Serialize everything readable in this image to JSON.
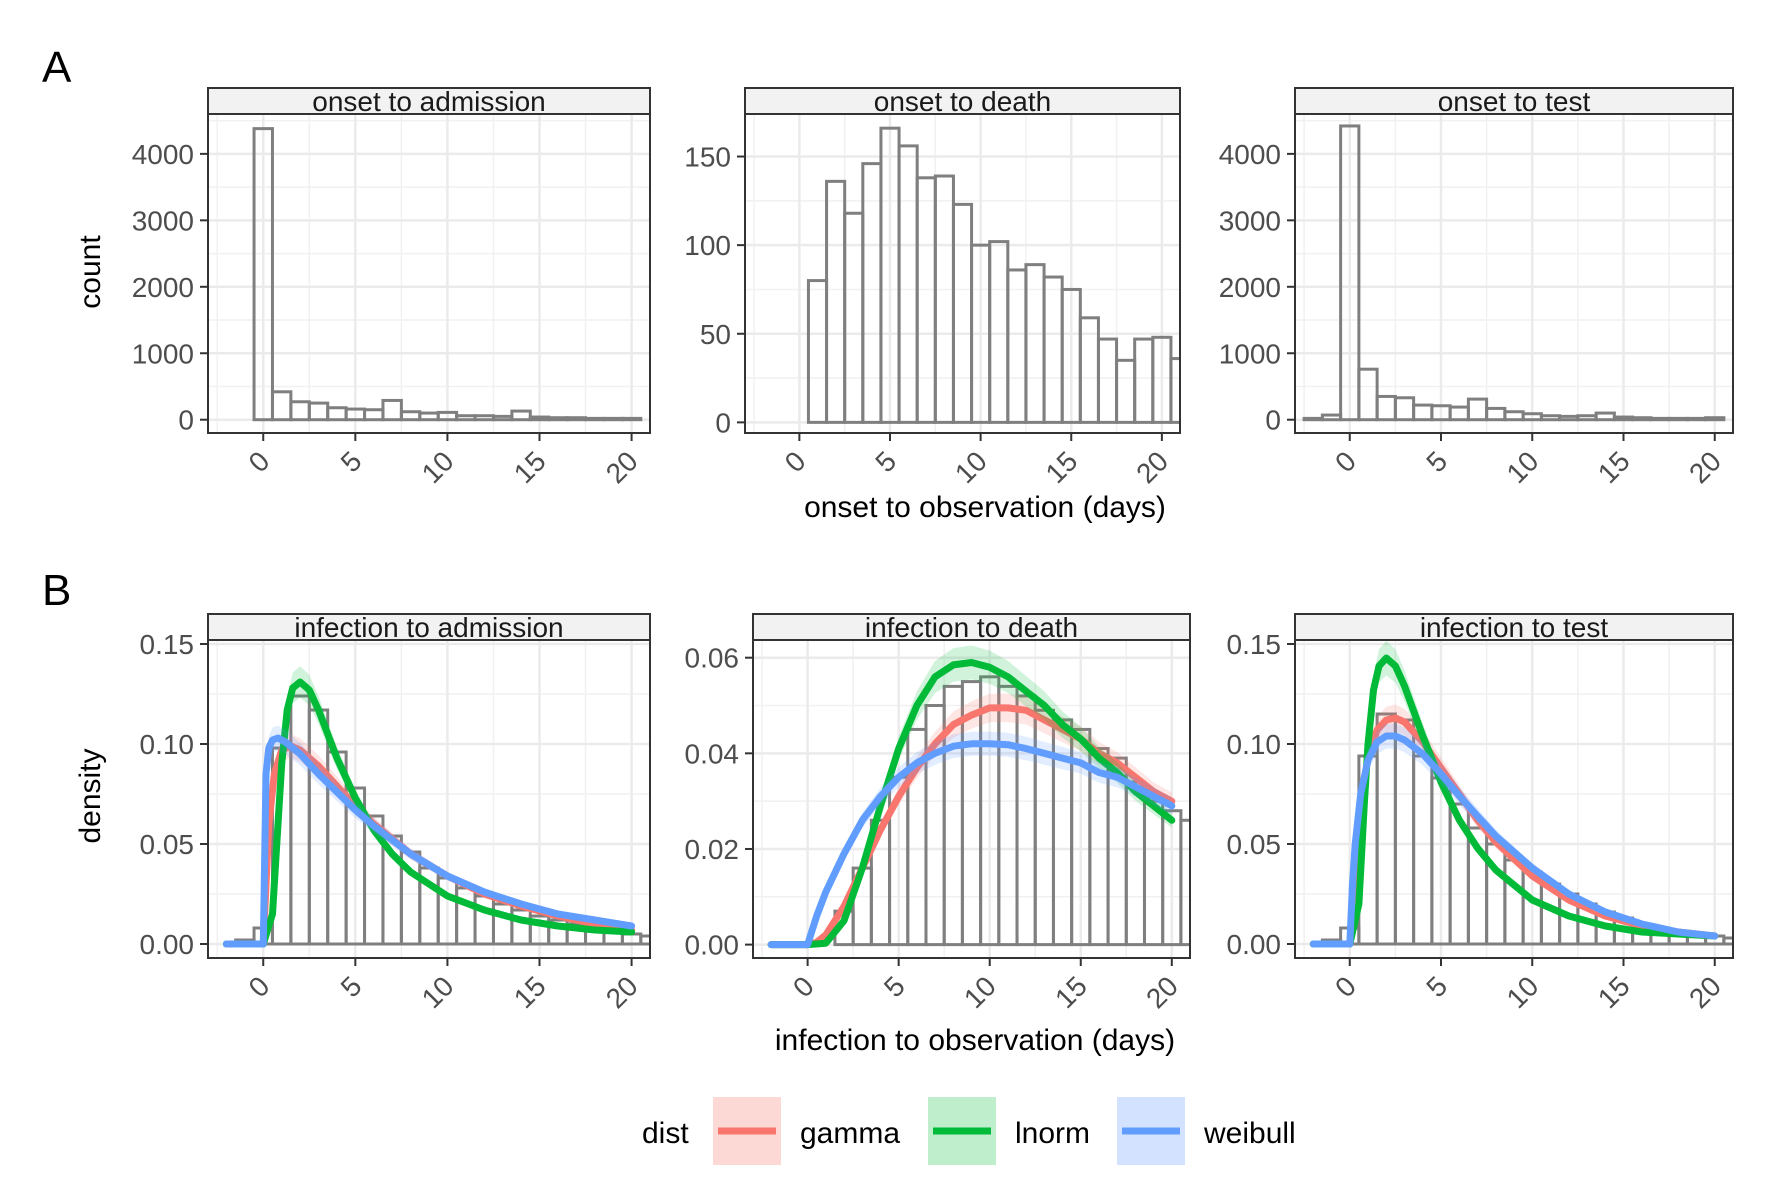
{
  "figure": {
    "label_a": "A",
    "label_b": "B",
    "row_a_xlabel": "onset to observation (days)",
    "row_a_ylabel": "count",
    "row_b_xlabel": "infection to observation (days)",
    "row_b_ylabel": "density"
  },
  "legend": {
    "title": "dist",
    "items": [
      {
        "label": "gamma",
        "color": "#F8766D"
      },
      {
        "label": "lnorm",
        "color": "#00BA38"
      },
      {
        "label": "weibull",
        "color": "#619CFF"
      }
    ]
  },
  "chart_data": [
    {
      "type": "bar",
      "title": "onset to admission",
      "xlabel": "onset to observation (days)",
      "ylabel": "count",
      "xlim": [
        -3,
        21
      ],
      "ylim": [
        -200,
        4600
      ],
      "x_ticks": [
        0,
        5,
        10,
        15,
        20
      ],
      "y_ticks": [
        0,
        1000,
        2000,
        3000,
        4000
      ],
      "bins": [
        {
          "x": 0,
          "value": 4380
        },
        {
          "x": 1,
          "value": 420
        },
        {
          "x": 2,
          "value": 270
        },
        {
          "x": 3,
          "value": 250
        },
        {
          "x": 4,
          "value": 180
        },
        {
          "x": 5,
          "value": 160
        },
        {
          "x": 6,
          "value": 150
        },
        {
          "x": 7,
          "value": 290
        },
        {
          "x": 8,
          "value": 120
        },
        {
          "x": 9,
          "value": 100
        },
        {
          "x": 10,
          "value": 110
        },
        {
          "x": 11,
          "value": 60
        },
        {
          "x": 12,
          "value": 60
        },
        {
          "x": 13,
          "value": 50
        },
        {
          "x": 14,
          "value": 130
        },
        {
          "x": 15,
          "value": 40
        },
        {
          "x": 16,
          "value": 30
        },
        {
          "x": 17,
          "value": 30
        },
        {
          "x": 18,
          "value": 20
        },
        {
          "x": 19,
          "value": 20
        },
        {
          "x": 20,
          "value": 20
        }
      ]
    },
    {
      "type": "bar",
      "title": "onset to death",
      "xlabel": "onset to observation (days)",
      "ylabel": "count",
      "xlim": [
        -3,
        21
      ],
      "ylim": [
        -6,
        174
      ],
      "x_ticks": [
        0,
        5,
        10,
        15,
        20
      ],
      "y_ticks": [
        0,
        50,
        100,
        150
      ],
      "bins": [
        {
          "x": 1,
          "value": 80
        },
        {
          "x": 2,
          "value": 136
        },
        {
          "x": 3,
          "value": 118
        },
        {
          "x": 4,
          "value": 146
        },
        {
          "x": 5,
          "value": 166
        },
        {
          "x": 6,
          "value": 156
        },
        {
          "x": 7,
          "value": 138
        },
        {
          "x": 8,
          "value": 139
        },
        {
          "x": 9,
          "value": 123
        },
        {
          "x": 10,
          "value": 100
        },
        {
          "x": 11,
          "value": 102
        },
        {
          "x": 12,
          "value": 86
        },
        {
          "x": 13,
          "value": 89
        },
        {
          "x": 14,
          "value": 82
        },
        {
          "x": 15,
          "value": 75
        },
        {
          "x": 16,
          "value": 59
        },
        {
          "x": 17,
          "value": 47
        },
        {
          "x": 18,
          "value": 35
        },
        {
          "x": 19,
          "value": 47
        },
        {
          "x": 20,
          "value": 48
        },
        {
          "x": 21,
          "value": 36
        }
      ]
    },
    {
      "type": "bar",
      "title": "onset to test",
      "xlabel": "onset to observation (days)",
      "ylabel": "count",
      "xlim": [
        -3,
        21
      ],
      "ylim": [
        -200,
        4600
      ],
      "x_ticks": [
        0,
        5,
        10,
        15,
        20
      ],
      "y_ticks": [
        0,
        1000,
        2000,
        3000,
        4000
      ],
      "bins": [
        {
          "x": -2,
          "value": 20
        },
        {
          "x": -1,
          "value": 70
        },
        {
          "x": 0,
          "value": 4420
        },
        {
          "x": 1,
          "value": 760
        },
        {
          "x": 2,
          "value": 350
        },
        {
          "x": 3,
          "value": 330
        },
        {
          "x": 4,
          "value": 220
        },
        {
          "x": 5,
          "value": 210
        },
        {
          "x": 6,
          "value": 190
        },
        {
          "x": 7,
          "value": 310
        },
        {
          "x": 8,
          "value": 170
        },
        {
          "x": 9,
          "value": 120
        },
        {
          "x": 10,
          "value": 90
        },
        {
          "x": 11,
          "value": 60
        },
        {
          "x": 12,
          "value": 50
        },
        {
          "x": 13,
          "value": 60
        },
        {
          "x": 14,
          "value": 100
        },
        {
          "x": 15,
          "value": 40
        },
        {
          "x": 16,
          "value": 30
        },
        {
          "x": 17,
          "value": 20
        },
        {
          "x": 18,
          "value": 20
        },
        {
          "x": 19,
          "value": 20
        },
        {
          "x": 20,
          "value": 30
        }
      ]
    },
    {
      "type": "line",
      "title": "infection to admission",
      "xlabel": "infection to observation (days)",
      "ylabel": "density",
      "xlim": [
        -3,
        21
      ],
      "ylim": [
        -0.007,
        0.152
      ],
      "x_ticks": [
        0,
        5,
        10,
        15,
        20
      ],
      "y_ticks": [
        0,
        0.05,
        0.1,
        0.15
      ],
      "y_tick_labels": [
        "0.00",
        "0.05",
        "0.10",
        "0.15"
      ],
      "bins": [
        {
          "x": -1,
          "value": 0.002
        },
        {
          "x": 0,
          "value": 0.008
        },
        {
          "x": 1,
          "value": 0.098
        },
        {
          "x": 2,
          "value": 0.124
        },
        {
          "x": 3,
          "value": 0.117
        },
        {
          "x": 4,
          "value": 0.096
        },
        {
          "x": 5,
          "value": 0.078
        },
        {
          "x": 6,
          "value": 0.064
        },
        {
          "x": 7,
          "value": 0.054
        },
        {
          "x": 8,
          "value": 0.046
        },
        {
          "x": 9,
          "value": 0.038
        },
        {
          "x": 10,
          "value": 0.033
        },
        {
          "x": 11,
          "value": 0.028
        },
        {
          "x": 12,
          "value": 0.024
        },
        {
          "x": 13,
          "value": 0.02
        },
        {
          "x": 14,
          "value": 0.017
        },
        {
          "x": 15,
          "value": 0.014
        },
        {
          "x": 16,
          "value": 0.012
        },
        {
          "x": 17,
          "value": 0.01
        },
        {
          "x": 18,
          "value": 0.008
        },
        {
          "x": 19,
          "value": 0.007
        },
        {
          "x": 20,
          "value": 0.005
        },
        {
          "x": 21,
          "value": 0.004
        }
      ],
      "series": [
        {
          "name": "gamma",
          "x": [
            -2,
            0,
            0.3,
            0.6,
            1,
            1.5,
            2,
            3,
            4,
            5,
            6,
            8,
            10,
            12,
            14,
            16,
            18,
            20
          ],
          "values": [
            0,
            0,
            0.06,
            0.085,
            0.097,
            0.099,
            0.097,
            0.089,
            0.079,
            0.069,
            0.06,
            0.045,
            0.034,
            0.025,
            0.019,
            0.014,
            0.01,
            0.007
          ]
        },
        {
          "name": "lnorm",
          "x": [
            -2,
            0,
            0.5,
            0.8,
            1,
            1.3,
            1.6,
            2,
            2.5,
            3,
            4,
            5,
            6,
            7,
            8,
            10,
            12,
            14,
            16,
            18,
            20
          ],
          "values": [
            0,
            0,
            0.015,
            0.06,
            0.09,
            0.117,
            0.128,
            0.131,
            0.127,
            0.117,
            0.093,
            0.073,
            0.057,
            0.045,
            0.036,
            0.024,
            0.017,
            0.012,
            0.009,
            0.007,
            0.006
          ]
        },
        {
          "name": "weibull",
          "x": [
            -2,
            0,
            0.15,
            0.3,
            0.5,
            0.8,
            1.2,
            2,
            3,
            4,
            5,
            6,
            8,
            10,
            12,
            14,
            16,
            18,
            20
          ],
          "values": [
            0,
            0,
            0.085,
            0.098,
            0.102,
            0.103,
            0.101,
            0.095,
            0.085,
            0.076,
            0.067,
            0.059,
            0.045,
            0.034,
            0.026,
            0.02,
            0.015,
            0.012,
            0.009
          ]
        }
      ]
    },
    {
      "type": "line",
      "title": "infection to death",
      "xlabel": "infection to observation (days)",
      "ylabel": "density",
      "xlim": [
        -3,
        21
      ],
      "ylim": [
        -0.0028,
        0.0637
      ],
      "x_ticks": [
        0,
        5,
        10,
        15,
        20
      ],
      "y_ticks": [
        0,
        0.02,
        0.04,
        0.06
      ],
      "y_tick_labels": [
        "0.00",
        "0.02",
        "0.04",
        "0.06"
      ],
      "bins": [
        {
          "x": 2,
          "value": 0.007
        },
        {
          "x": 3,
          "value": 0.016
        },
        {
          "x": 4,
          "value": 0.026
        },
        {
          "x": 5,
          "value": 0.035
        },
        {
          "x": 6,
          "value": 0.045
        },
        {
          "x": 7,
          "value": 0.05
        },
        {
          "x": 8,
          "value": 0.054
        },
        {
          "x": 9,
          "value": 0.055
        },
        {
          "x": 10,
          "value": 0.056
        },
        {
          "x": 11,
          "value": 0.054
        },
        {
          "x": 12,
          "value": 0.052
        },
        {
          "x": 13,
          "value": 0.049
        },
        {
          "x": 14,
          "value": 0.047
        },
        {
          "x": 15,
          "value": 0.045
        },
        {
          "x": 16,
          "value": 0.041
        },
        {
          "x": 17,
          "value": 0.039
        },
        {
          "x": 18,
          "value": 0.034
        },
        {
          "x": 19,
          "value": 0.03
        },
        {
          "x": 20,
          "value": 0.028
        },
        {
          "x": 21,
          "value": 0.026
        }
      ],
      "series": [
        {
          "name": "gamma",
          "x": [
            -2,
            0,
            0.5,
            1,
            2,
            3,
            4,
            5,
            6,
            7,
            8,
            9,
            10,
            11,
            12,
            13,
            14,
            15,
            16,
            17,
            18,
            19,
            20
          ],
          "values": [
            0,
            0,
            0.0005,
            0.002,
            0.008,
            0.016,
            0.024,
            0.031,
            0.037,
            0.042,
            0.046,
            0.048,
            0.0495,
            0.0495,
            0.049,
            0.047,
            0.045,
            0.043,
            0.04,
            0.038,
            0.035,
            0.032,
            0.03
          ]
        },
        {
          "name": "lnorm",
          "x": [
            -2,
            0,
            1,
            2,
            3,
            4,
            5,
            6,
            7,
            8,
            9,
            10,
            11,
            12,
            13,
            14,
            15,
            16,
            17,
            18,
            19,
            20
          ],
          "values": [
            0,
            0,
            0.0003,
            0.005,
            0.016,
            0.029,
            0.041,
            0.05,
            0.056,
            0.0585,
            0.059,
            0.058,
            0.056,
            0.053,
            0.05,
            0.046,
            0.043,
            0.039,
            0.036,
            0.032,
            0.029,
            0.026
          ]
        },
        {
          "name": "weibull",
          "x": [
            -2,
            0,
            0.5,
            1,
            2,
            3,
            4,
            5,
            6,
            7,
            8,
            9,
            10,
            11,
            12,
            13,
            14,
            15,
            16,
            17,
            18,
            19,
            20
          ],
          "values": [
            0,
            0,
            0.006,
            0.011,
            0.019,
            0.026,
            0.031,
            0.035,
            0.038,
            0.04,
            0.0415,
            0.042,
            0.042,
            0.0418,
            0.041,
            0.04,
            0.039,
            0.038,
            0.036,
            0.035,
            0.033,
            0.031,
            0.029
          ]
        }
      ]
    },
    {
      "type": "line",
      "title": "infection to test",
      "xlabel": "infection to observation (days)",
      "ylabel": "density",
      "xlim": [
        -3,
        21
      ],
      "ylim": [
        -0.007,
        0.152
      ],
      "x_ticks": [
        0,
        5,
        10,
        15,
        20
      ],
      "y_ticks": [
        0,
        0.05,
        0.1,
        0.15
      ],
      "y_tick_labels": [
        "0.00",
        "0.05",
        "0.10",
        "0.15"
      ],
      "bins": [
        {
          "x": -1,
          "value": 0.002
        },
        {
          "x": 0,
          "value": 0.008
        },
        {
          "x": 1,
          "value": 0.094
        },
        {
          "x": 2,
          "value": 0.115
        },
        {
          "x": 3,
          "value": 0.112
        },
        {
          "x": 4,
          "value": 0.094
        },
        {
          "x": 5,
          "value": 0.083
        },
        {
          "x": 6,
          "value": 0.07
        },
        {
          "x": 7,
          "value": 0.058
        },
        {
          "x": 8,
          "value": 0.05
        },
        {
          "x": 9,
          "value": 0.042
        },
        {
          "x": 10,
          "value": 0.036
        },
        {
          "x": 11,
          "value": 0.03
        },
        {
          "x": 12,
          "value": 0.025
        },
        {
          "x": 13,
          "value": 0.02
        },
        {
          "x": 14,
          "value": 0.016
        },
        {
          "x": 15,
          "value": 0.013
        },
        {
          "x": 16,
          "value": 0.01
        },
        {
          "x": 17,
          "value": 0.008
        },
        {
          "x": 18,
          "value": 0.006
        },
        {
          "x": 19,
          "value": 0.005
        },
        {
          "x": 20,
          "value": 0.004
        },
        {
          "x": 21,
          "value": 0.003
        }
      ],
      "series": [
        {
          "name": "gamma",
          "x": [
            -2,
            0,
            0.3,
            0.7,
            1,
            1.5,
            2,
            2.5,
            3,
            4,
            5,
            6,
            7,
            8,
            10,
            12,
            14,
            16,
            18,
            20
          ],
          "values": [
            0,
            0,
            0.03,
            0.075,
            0.094,
            0.107,
            0.112,
            0.113,
            0.111,
            0.101,
            0.088,
            0.075,
            0.062,
            0.051,
            0.034,
            0.022,
            0.014,
            0.009,
            0.006,
            0.004
          ]
        },
        {
          "name": "lnorm",
          "x": [
            -2,
            0,
            0.5,
            0.8,
            1,
            1.3,
            1.6,
            2,
            2.5,
            3,
            4,
            5,
            6,
            7,
            8,
            10,
            12,
            14,
            16,
            18,
            20
          ],
          "values": [
            0,
            0,
            0.02,
            0.07,
            0.1,
            0.127,
            0.139,
            0.143,
            0.139,
            0.129,
            0.104,
            0.081,
            0.062,
            0.048,
            0.037,
            0.022,
            0.014,
            0.009,
            0.006,
            0.005,
            0.004
          ]
        },
        {
          "name": "weibull",
          "x": [
            -2,
            0,
            0.15,
            0.3,
            0.6,
            1,
            1.5,
            2,
            2.5,
            3,
            4,
            5,
            6,
            7,
            8,
            10,
            12,
            14,
            16,
            18,
            20
          ],
          "values": [
            0,
            0,
            0.03,
            0.05,
            0.075,
            0.092,
            0.101,
            0.104,
            0.104,
            0.102,
            0.095,
            0.085,
            0.074,
            0.064,
            0.054,
            0.038,
            0.025,
            0.016,
            0.01,
            0.006,
            0.004
          ]
        }
      ]
    }
  ]
}
